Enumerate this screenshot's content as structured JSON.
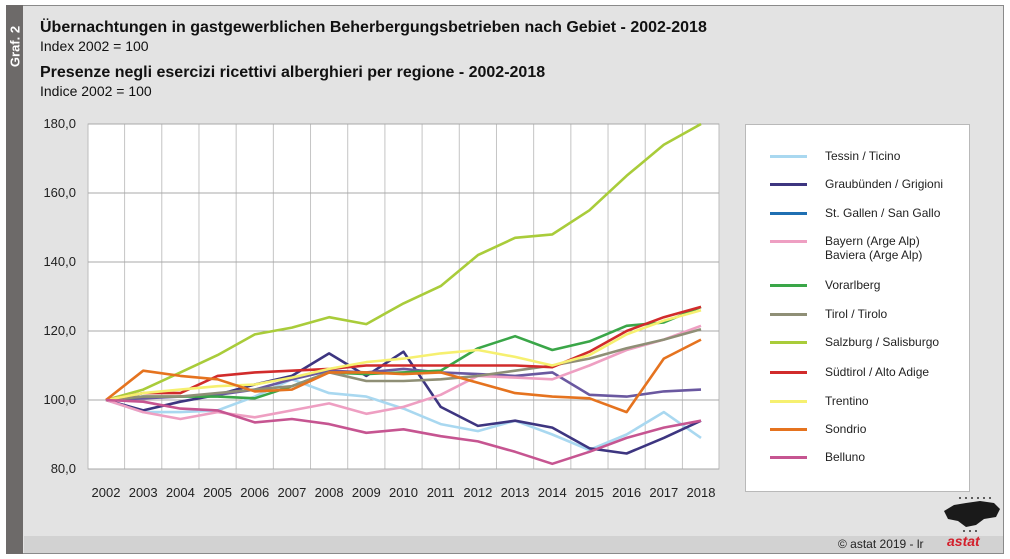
{
  "side_tab": "Graf. 2",
  "titles": {
    "de_title": "Übernachtungen in gastgewerblichen Beherbergungsbetrieben nach Gebiet - 2002-2018",
    "de_subtitle": "Index 2002 = 100",
    "it_title": "Presenze negli esercizi ricettivi alberghieri per regione - 2002-2018",
    "it_subtitle": "Indice 2002 = 100"
  },
  "footer": {
    "copyright": "©  astat 2019 - lr",
    "logo_text": "astat"
  },
  "chart_data": {
    "type": "line",
    "title": "Übernachtungen in gastgewerblichen Beherbergungsbetrieben nach Gebiet - 2002-2018 / Presenze negli esercizi ricettivi alberghieri per regione - 2002-2018",
    "xlabel": "",
    "ylabel": "Index 2002 = 100",
    "ylim": [
      80,
      180
    ],
    "yticks": [
      "80,0",
      "100,0",
      "120,0",
      "140,0",
      "160,0",
      "180,0"
    ],
    "ytick_values": [
      80,
      100,
      120,
      140,
      160,
      180
    ],
    "grid": true,
    "legend_position": "right",
    "x": [
      "2002",
      "2003",
      "2004",
      "2005",
      "2006",
      "2007",
      "2008",
      "2009",
      "2010",
      "2011",
      "2012",
      "2013",
      "2014",
      "2015",
      "2016",
      "2017",
      "2018"
    ],
    "series": [
      {
        "name": "Tessin / Ticino",
        "color": "#a9d8f0",
        "values": [
          100,
          96.5,
          96.5,
          97,
          101,
          106,
          102,
          101,
          97.5,
          93,
          91,
          94,
          90,
          85.5,
          90,
          96.5,
          89
        ]
      },
      {
        "name": "Graubünden / Grigioni",
        "color": "#3d3580",
        "values": [
          100,
          97,
          99.5,
          101.5,
          104.5,
          107,
          113.5,
          107,
          114,
          98,
          92.5,
          94,
          92,
          86,
          84.5,
          89,
          94
        ]
      },
      {
        "name": "St. Gallen / San Gallo",
        "color": "#6a58a0",
        "legend_color": "#1f6fb2",
        "values": [
          100,
          100.5,
          101,
          101.5,
          103,
          106,
          108.5,
          108,
          109,
          108,
          107.5,
          107,
          108,
          101.5,
          101,
          102.5,
          103
        ]
      },
      {
        "name": "Bayern (Arge Alp)\nBaviera (Arge Alp)",
        "color": "#ee9fc2",
        "values": [
          100,
          96.5,
          94.5,
          96.5,
          95,
          97,
          99,
          96,
          98,
          101.5,
          107,
          106.5,
          106,
          110,
          114.5,
          117.5,
          121.5
        ]
      },
      {
        "name": "Vorarlberg",
        "color": "#3aa648",
        "values": [
          100,
          101,
          101,
          101,
          100.5,
          104,
          108,
          107.5,
          108,
          108.5,
          115,
          118.5,
          114.5,
          117,
          121.5,
          122.5,
          127
        ]
      },
      {
        "name": "Tirol / Tirolo",
        "color": "#8f8f76",
        "values": [
          100,
          101,
          101,
          102,
          103,
          104,
          108,
          105.5,
          105.5,
          106,
          107,
          108.5,
          110,
          112,
          115,
          117.5,
          120.5
        ]
      },
      {
        "name": "Salzburg / Salisburgo",
        "color": "#a9cc3a",
        "values": [
          100,
          103,
          108,
          113,
          119,
          121,
          124,
          122,
          128,
          133,
          142,
          147,
          148,
          155,
          165,
          174,
          180
        ]
      },
      {
        "name": "Südtirol / Alto Adige",
        "color": "#d12b2b",
        "values": [
          100,
          102,
          102,
          107,
          108,
          108.5,
          109,
          110,
          110,
          110,
          110,
          110,
          109.5,
          114,
          120,
          124,
          127
        ]
      },
      {
        "name": "Trentino",
        "color": "#f6f070",
        "values": [
          100,
          102,
          103,
          104,
          104.5,
          106.5,
          109,
          111,
          112,
          113.5,
          114.5,
          112.5,
          110,
          113,
          119,
          123,
          126
        ]
      },
      {
        "name": "Sondrio",
        "color": "#e5731f",
        "values": [
          100,
          108.5,
          107,
          106,
          102.5,
          103,
          108,
          108,
          107.5,
          108,
          105,
          102,
          101,
          100.5,
          96.5,
          112,
          117.5
        ]
      },
      {
        "name": "Belluno",
        "color": "#c65591",
        "values": [
          100,
          99.5,
          97.5,
          97,
          93.5,
          94.5,
          93,
          90.5,
          91.5,
          89.5,
          88,
          85,
          81.5,
          85,
          89,
          92,
          94
        ]
      }
    ]
  }
}
